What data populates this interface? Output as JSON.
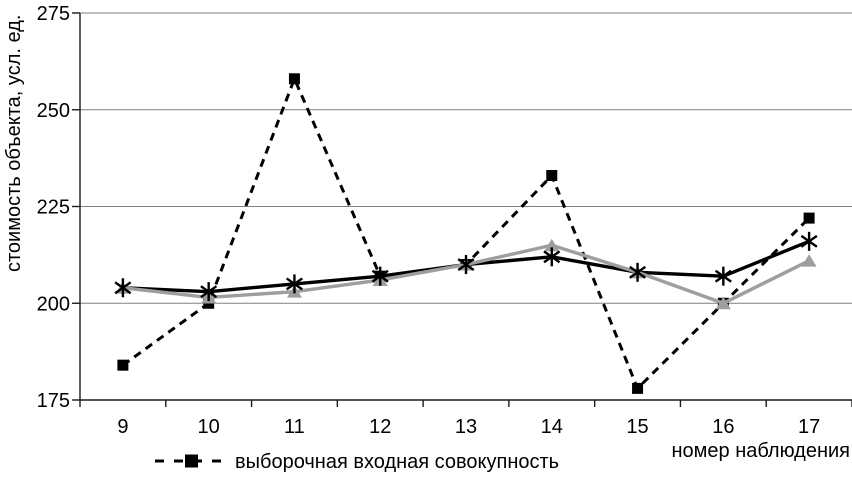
{
  "chart_data": {
    "type": "line",
    "title": "",
    "xlabel": "номер наблюдения",
    "ylabel": "стоимость объекта, усл. ед.",
    "categories": [
      "9",
      "10",
      "11",
      "12",
      "13",
      "14",
      "15",
      "16",
      "17"
    ],
    "yticks": [
      175,
      200,
      225,
      250,
      275
    ],
    "ylim": [
      175,
      275
    ],
    "grid": true,
    "grid_color": "#808080",
    "axis_color": "#1a1a1a",
    "legend_position": "bottom-left",
    "series": [
      {
        "id": "sample-input-population",
        "name": "выборочная входная совокупность",
        "show_in_legend": true,
        "color": "#000000",
        "line_style": "dashed",
        "marker": "square",
        "values": [
          184,
          200,
          258,
          207,
          210,
          233,
          178,
          200,
          222
        ]
      },
      {
        "id": "solid-black-series",
        "name": "",
        "show_in_legend": false,
        "color": "#000000",
        "line_style": "solid",
        "marker": "asterisk",
        "values": [
          204,
          203,
          205,
          207,
          210,
          212,
          208,
          207,
          216
        ]
      },
      {
        "id": "gray-series",
        "name": "",
        "show_in_legend": false,
        "color": "#9e9e9e",
        "line_style": "solid",
        "marker": "triangle",
        "values": [
          204,
          201.5,
          203,
          206,
          210,
          215,
          208,
          200,
          211
        ]
      }
    ],
    "legend": [
      {
        "label": "выборочная входная совокупность",
        "marker": "dashed-square"
      }
    ]
  }
}
